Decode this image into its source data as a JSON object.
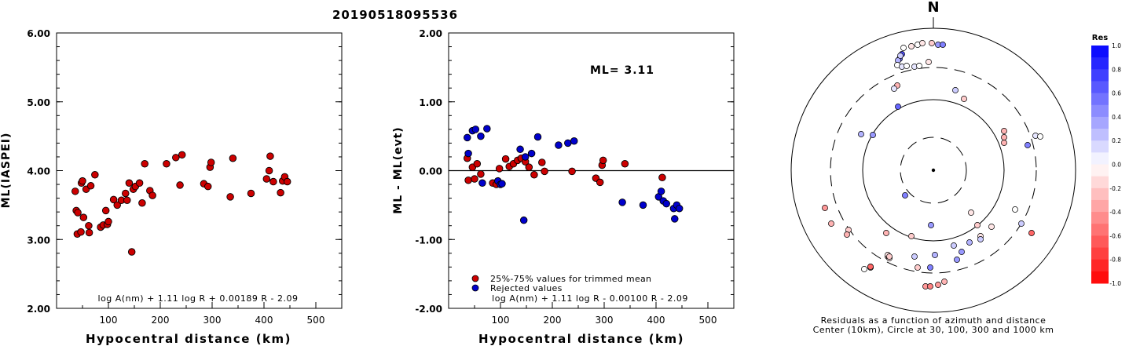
{
  "title": "20190518095536",
  "chart_data": [
    {
      "type": "scatter",
      "xlabel": "Hypocentral distance (km)",
      "ylabel": "ML(IASPEI)",
      "xlim": [
        0,
        550
      ],
      "ylim": [
        2.0,
        6.0
      ],
      "xticks": [
        "100",
        "200",
        "300",
        "400",
        "500"
      ],
      "yticks": [
        "2.00",
        "3.00",
        "4.00",
        "5.00",
        "6.00"
      ],
      "formula": "log A(nm) + 1.11 log R + 0.00189 R - 2.09",
      "series": [
        {
          "color": "#cc0000",
          "points": [
            [
              36,
              3.7
            ],
            [
              38,
              3.42
            ],
            [
              40,
              3.08
            ],
            [
              41,
              3.39
            ],
            [
              47,
              3.11
            ],
            [
              48,
              3.82
            ],
            [
              50,
              3.85
            ],
            [
              52,
              3.32
            ],
            [
              57,
              3.73
            ],
            [
              62,
              3.2
            ],
            [
              63,
              3.1
            ],
            [
              66,
              3.78
            ],
            [
              74,
              3.94
            ],
            [
              85,
              3.18
            ],
            [
              90,
              3.21
            ],
            [
              95,
              3.42
            ],
            [
              98,
              3.22
            ],
            [
              100,
              3.26
            ],
            [
              110,
              3.58
            ],
            [
              117,
              3.5
            ],
            [
              125,
              3.57
            ],
            [
              133,
              3.67
            ],
            [
              136,
              3.57
            ],
            [
              140,
              3.82
            ],
            [
              145,
              2.82
            ],
            [
              148,
              3.73
            ],
            [
              152,
              3.77
            ],
            [
              160,
              3.82
            ],
            [
              165,
              3.53
            ],
            [
              170,
              4.1
            ],
            [
              180,
              3.71
            ],
            [
              185,
              3.64
            ],
            [
              212,
              4.1
            ],
            [
              230,
              4.19
            ],
            [
              238,
              3.79
            ],
            [
              242,
              4.23
            ],
            [
              284,
              3.81
            ],
            [
              292,
              3.77
            ],
            [
              296,
              4.05
            ],
            [
              298,
              4.12
            ],
            [
              335,
              3.62
            ],
            [
              340,
              4.18
            ],
            [
              375,
              3.67
            ],
            [
              405,
              3.88
            ],
            [
              410,
              4.0
            ],
            [
              412,
              4.21
            ],
            [
              418,
              3.84
            ],
            [
              432,
              3.68
            ],
            [
              436,
              3.85
            ],
            [
              440,
              3.91
            ],
            [
              445,
              3.84
            ]
          ]
        }
      ]
    },
    {
      "type": "scatter",
      "xlabel": "Hypocentral distance (km)",
      "ylabel": "ML - ML(evt)",
      "xlim": [
        0,
        550
      ],
      "ylim": [
        -2.0,
        2.0
      ],
      "xticks": [
        "100",
        "200",
        "300",
        "400",
        "500"
      ],
      "yticks": [
        "-2.00",
        "-1.00",
        "0.00",
        "1.00",
        "2.00"
      ],
      "annotation": "ML= 3.11",
      "formula": "log A(nm) + 1.11 log R - 0.00100 R - 2.09",
      "legend": [
        {
          "label": "25%-75% values for trimmed mean",
          "color": "#cc0000"
        },
        {
          "label": "Rejected values",
          "color": "#0000cc"
        }
      ],
      "series": [
        {
          "name": "25%-75% values for trimmed mean",
          "color": "#cc0000",
          "points": [
            [
              36,
              0.18
            ],
            [
              38,
              -0.14
            ],
            [
              46,
              0.05
            ],
            [
              50,
              -0.12
            ],
            [
              55,
              0.1
            ],
            [
              62,
              -0.05
            ],
            [
              85,
              -0.18
            ],
            [
              92,
              -0.2
            ],
            [
              98,
              0.03
            ],
            [
              110,
              0.17
            ],
            [
              117,
              0.06
            ],
            [
              125,
              0.1
            ],
            [
              133,
              0.15
            ],
            [
              140,
              0.18
            ],
            [
              148,
              0.13
            ],
            [
              155,
              0.05
            ],
            [
              165,
              -0.06
            ],
            [
              180,
              0.12
            ],
            [
              185,
              -0.01
            ],
            [
              238,
              -0.01
            ],
            [
              284,
              -0.11
            ],
            [
              292,
              -0.17
            ],
            [
              296,
              0.08
            ],
            [
              298,
              0.15
            ],
            [
              340,
              0.1
            ],
            [
              412,
              -0.1
            ]
          ]
        },
        {
          "name": "Rejected values",
          "color": "#0000cc",
          "points": [
            [
              36,
              0.48
            ],
            [
              38,
              0.25
            ],
            [
              46,
              0.58
            ],
            [
              52,
              0.6
            ],
            [
              62,
              0.5
            ],
            [
              65,
              -0.18
            ],
            [
              74,
              0.61
            ],
            [
              95,
              -0.15
            ],
            [
              100,
              -0.2
            ],
            [
              103,
              -0.19
            ],
            [
              138,
              0.31
            ],
            [
              145,
              -0.72
            ],
            [
              148,
              0.2
            ],
            [
              160,
              0.25
            ],
            [
              172,
              0.49
            ],
            [
              212,
              0.37
            ],
            [
              230,
              0.4
            ],
            [
              242,
              0.43
            ],
            [
              335,
              -0.46
            ],
            [
              375,
              -0.5
            ],
            [
              405,
              -0.38
            ],
            [
              410,
              -0.3
            ],
            [
              414,
              -0.44
            ],
            [
              420,
              -0.48
            ],
            [
              434,
              -0.55
            ],
            [
              436,
              -0.7
            ],
            [
              440,
              -0.5
            ],
            [
              445,
              -0.55
            ]
          ]
        }
      ]
    },
    {
      "type": "scatter",
      "subtype": "polar",
      "north_label": "N",
      "caption_line1": "Residuals as a function of azimuth and distance",
      "caption_line2": "Center (10km), Circle at 30, 100, 300 and 1000 km",
      "colorbar": {
        "title": "Res",
        "range": [
          -1.0,
          1.0
        ],
        "ticks": [
          "1.0",
          "0.8",
          "0.6",
          "0.4",
          "0.2",
          "0.0",
          "-0.2",
          "-0.4",
          "-0.6",
          "-0.8",
          "-1.0"
        ]
      },
      "points": [
        [
          -77,
          45,
          0.4
        ],
        [
          -45,
          81,
          0.6
        ],
        [
          39,
          91,
          -0.2
        ],
        [
          -43,
          142,
          0.6
        ],
        [
          -40,
          148,
          0.7
        ],
        [
          -45,
          140,
          0.3
        ],
        [
          -42,
          146,
          0.2
        ],
        [
          -38,
          156,
          0.0
        ],
        [
          -28,
          158,
          -0.1
        ],
        [
          -20,
          160,
          0.0
        ],
        [
          -14,
          162,
          -0.1
        ],
        [
          -2,
          162,
          -0.2
        ],
        [
          6,
          160,
          0.4
        ],
        [
          12,
          160,
          0.5
        ],
        [
          -46,
          134,
          0.0
        ],
        [
          -40,
          132,
          0.1
        ],
        [
          -34,
          133,
          0.0
        ],
        [
          -24,
          132,
          0.1
        ],
        [
          -18,
          133,
          0.0
        ],
        [
          -6,
          138,
          -0.1
        ],
        [
          -46,
          108,
          -0.3
        ],
        [
          -50,
          104,
          0.1
        ],
        [
          28,
          102,
          0.2
        ],
        [
          90,
          42,
          -0.3
        ],
        [
          90,
          35,
          -0.3
        ],
        [
          90,
          50,
          -0.3
        ],
        [
          -92,
          46,
          0.3
        ],
        [
          130,
          44,
          0.1
        ],
        [
          136,
          43,
          0.0
        ],
        [
          120,
          32,
          0.5
        ],
        [
          -36,
          -32,
          0.5
        ],
        [
          -138,
          -48,
          -0.4
        ],
        [
          -130,
          -68,
          -0.3
        ],
        [
          -108,
          -76,
          -0.2
        ],
        [
          -60,
          -80,
          -0.3
        ],
        [
          -28,
          -84,
          -0.2
        ],
        [
          -3,
          -70,
          0.4
        ],
        [
          48,
          -54,
          -0.1
        ],
        [
          56,
          -70,
          -0.2
        ],
        [
          60,
          -84,
          -0.1
        ],
        [
          74,
          -72,
          -0.1
        ],
        [
          104,
          -50,
          0.0
        ],
        [
          112,
          -68,
          0.2
        ],
        [
          125,
          -80,
          -0.6
        ],
        [
          -58,
          -110,
          -0.2
        ],
        [
          -58,
          -108,
          -0.1
        ],
        [
          -56,
          -112,
          -0.1
        ],
        [
          -24,
          -110,
          0.2
        ],
        [
          2,
          -108,
          0.3
        ],
        [
          26,
          -96,
          0.2
        ],
        [
          30,
          -114,
          0.4
        ],
        [
          36,
          -104,
          0.4
        ],
        [
          46,
          -92,
          0.3
        ],
        [
          60,
          -88,
          0.2
        ],
        [
          -4,
          -124,
          0.5
        ],
        [
          -20,
          -124,
          -0.2
        ],
        [
          -88,
          -126,
          0.0
        ],
        [
          -80,
          -123,
          -0.1
        ],
        [
          -80,
          -124,
          -0.1
        ],
        [
          -56,
          -110,
          -0.2
        ],
        [
          -10,
          -148,
          -0.4
        ],
        [
          -4,
          -148,
          -0.5
        ],
        [
          6,
          -146,
          -0.4
        ],
        [
          14,
          -142,
          -0.3
        ],
        [
          -80,
          -123,
          -0.6
        ],
        [
          -110,
          -82,
          -0.3
        ]
      ]
    }
  ]
}
